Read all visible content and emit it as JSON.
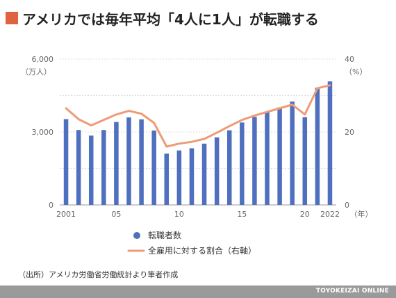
{
  "title": "アメリカでは毎年平均「4人に1人」が転職する",
  "source": "（出所）アメリカ労働省労働統計より筆者作成",
  "brand": "TOYOKEIZAI ONLINE",
  "colors": {
    "accent": "#e0633f",
    "bar": "#4f6fbf",
    "line": "#ee9b77",
    "footer": "#9a9a9a"
  },
  "chart_data": {
    "type": "bar",
    "title": "アメリカでは毎年平均「4人に1人」が転職する",
    "x": [
      2001,
      2002,
      2003,
      2004,
      2005,
      2006,
      2007,
      2008,
      2009,
      2010,
      2011,
      2012,
      2013,
      2014,
      2015,
      2016,
      2017,
      2018,
      2019,
      2020,
      2021,
      2022
    ],
    "x_tick_labels": [
      "2001",
      "05",
      "10",
      "15",
      "20",
      "2022"
    ],
    "x_tick_values": [
      2001,
      2005,
      2010,
      2015,
      2020,
      2022
    ],
    "x_unit": "（年）",
    "series": [
      {
        "name": "転職者数",
        "type": "bar",
        "axis": "left",
        "values": [
          3530,
          3080,
          2850,
          3080,
          3410,
          3600,
          3520,
          3060,
          2110,
          2240,
          2330,
          2520,
          2780,
          3070,
          3390,
          3620,
          3820,
          4010,
          4250,
          3610,
          4820,
          5080
        ]
      },
      {
        "name": "全雇用に対する割合（右軸）",
        "type": "line",
        "axis": "right",
        "values": [
          26.5,
          23.5,
          21.8,
          23.3,
          24.8,
          25.8,
          25.0,
          22.5,
          16.0,
          16.8,
          17.3,
          18.1,
          19.8,
          21.6,
          23.3,
          24.5,
          25.5,
          26.5,
          27.5,
          24.8,
          32.0,
          32.8
        ]
      }
    ],
    "y_left": {
      "ticks": [
        "0",
        "3,000",
        "6,000"
      ],
      "tick_values": [
        0,
        3000,
        6000
      ],
      "range": [
        0,
        6000
      ],
      "unit": "（万人）"
    },
    "y_right": {
      "ticks": [
        "0",
        "20",
        "40"
      ],
      "tick_values": [
        0,
        20,
        40
      ],
      "range": [
        0,
        40
      ],
      "unit": "（%）"
    },
    "grid": true,
    "legend": "bottom"
  }
}
